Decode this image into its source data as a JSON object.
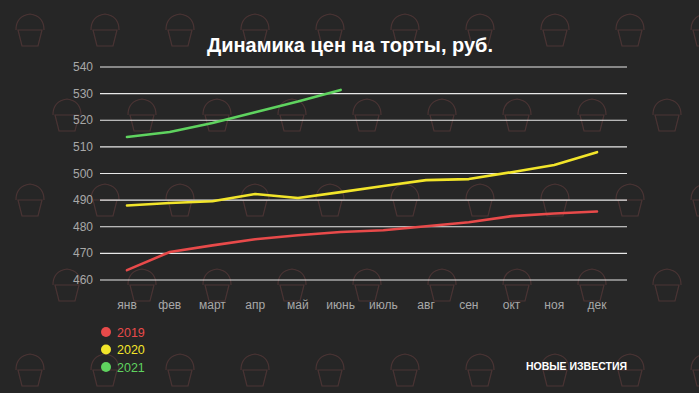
{
  "chart_data": {
    "type": "line",
    "title": "Динамика цен на торты, руб.",
    "categories": [
      "янв",
      "фев",
      "март",
      "апр",
      "май",
      "июнь",
      "июль",
      "авг",
      "сен",
      "окт",
      "ноя",
      "дек"
    ],
    "series": [
      {
        "name": "2019",
        "color": "#e84a4a",
        "values": [
          463.7,
          470.5,
          473,
          475.3,
          476.8,
          478,
          478.7,
          480.2,
          481.7,
          484,
          485,
          485.7
        ]
      },
      {
        "name": "2020",
        "color": "#f2e52a",
        "values": [
          488,
          488.9,
          489.6,
          492.3,
          490.8,
          493,
          495.3,
          497.5,
          497.9,
          500.5,
          503.2,
          508
        ]
      },
      {
        "name": "2021",
        "color": "#5fd35f",
        "values": [
          513.7,
          515.6,
          519,
          523,
          527,
          531.4,
          null,
          null,
          null,
          null,
          null,
          null
        ]
      }
    ],
    "ylim": [
      460,
      540
    ],
    "yticks": [
      460,
      470,
      480,
      490,
      500,
      510,
      520,
      530,
      540
    ],
    "grid": true,
    "legend": "lower left",
    "annotations": [
      "НОВЫЕ ИЗВЕСТИЯ"
    ]
  }
}
